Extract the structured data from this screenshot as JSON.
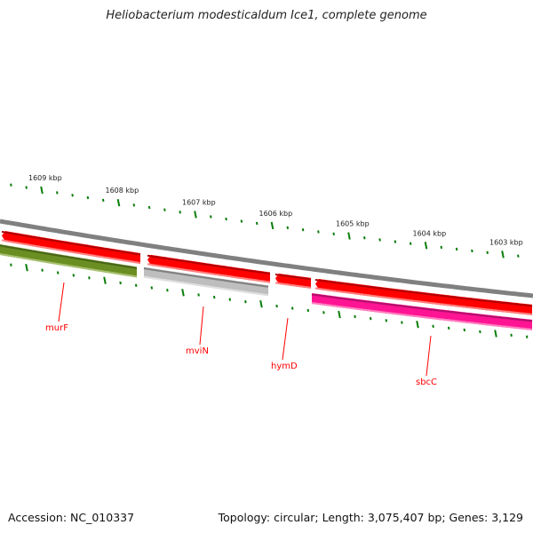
{
  "title": "Heliobacterium modesticaldum Ice1, complete genome",
  "footer": {
    "accession": "Accession: NC_010337",
    "summary": "Topology: circular; Length: 3,075,407 bp; Genes: 3,129"
  },
  "scale_labels": [
    "1609 kbp",
    "1608 kbp",
    "1607 kbp",
    "1606 kbp",
    "1605 kbp",
    "1604 kbp",
    "1603 kbp"
  ],
  "genes": [
    {
      "name": "",
      "strand": "forward",
      "color": "#ff0000"
    },
    {
      "name": "",
      "strand": "forward",
      "color": "#ff0000"
    },
    {
      "name": "",
      "strand": "forward",
      "color": "#ff0000"
    },
    {
      "name": "",
      "strand": "forward",
      "color": "#ff0000"
    },
    {
      "name": "murF",
      "strand": "reverse",
      "color": "#6b8e23"
    },
    {
      "name": "mviN",
      "strand": "reverse",
      "color": "#bebebe"
    },
    {
      "name": "hymD",
      "strand": "forward",
      "color": "#ff0000"
    },
    {
      "name": "sbcC",
      "strand": "reverse",
      "color": "#ff1493"
    }
  ],
  "colors": {
    "backbone": "#808080",
    "ticks": "#0a7d0a",
    "label": "#ff0000"
  }
}
